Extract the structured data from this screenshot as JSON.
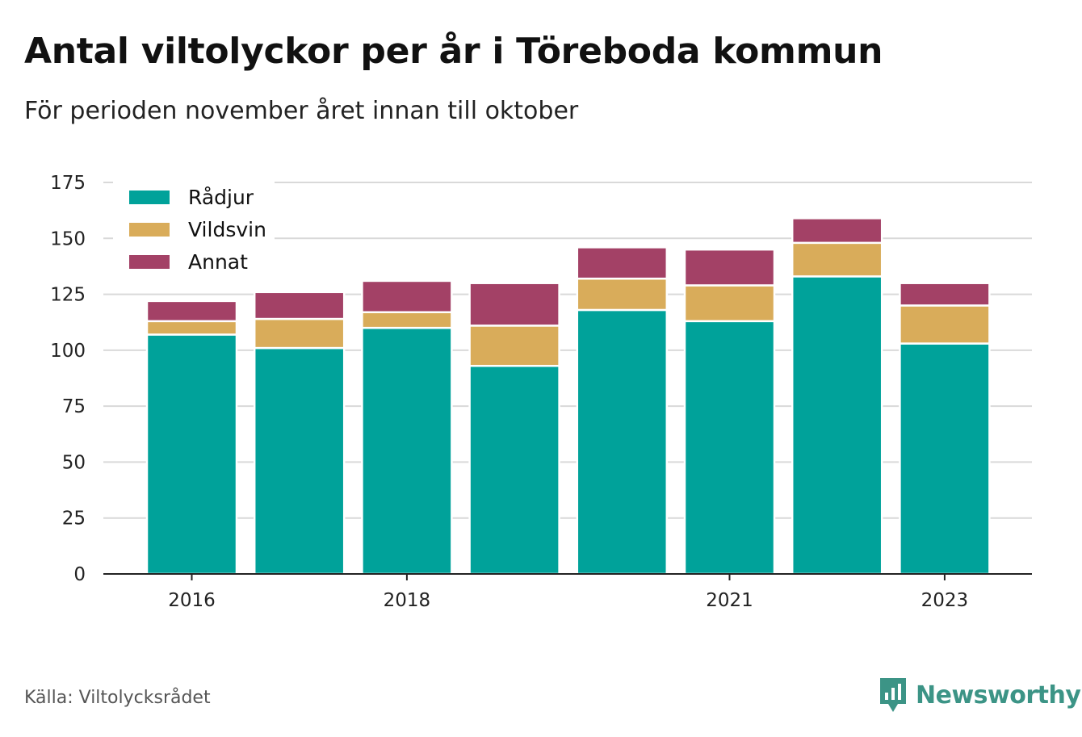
{
  "title": "Antal viltolyckor per år i Töreboda kommun",
  "subtitle": "För perioden november året innan till oktober",
  "source": "Källa: Viltolycksrådet",
  "logo_text": "Newsworthy",
  "colors": {
    "Rådjur": "#00a29a",
    "Vildsvin": "#d9ac5a",
    "Annat": "#a34166",
    "grid": "#d9d9d9",
    "axis": "#222222",
    "logo": "#3c9486"
  },
  "chart_data": {
    "type": "bar",
    "stacked": true,
    "categories": [
      "2016",
      "2017",
      "2018",
      "2019",
      "2020",
      "2021",
      "2022",
      "2023"
    ],
    "x_tick_labels": [
      "2016",
      "2018",
      "2021",
      "2023"
    ],
    "series": [
      {
        "name": "Rådjur",
        "values": [
          107,
          101,
          110,
          93,
          118,
          113,
          133,
          103
        ]
      },
      {
        "name": "Vildsvin",
        "values": [
          6,
          13,
          7,
          18,
          14,
          16,
          15,
          17
        ]
      },
      {
        "name": "Annat",
        "values": [
          9,
          12,
          14,
          19,
          14,
          16,
          11,
          10
        ]
      }
    ],
    "ylim": [
      0,
      175
    ],
    "y_ticks": [
      0,
      25,
      50,
      75,
      100,
      125,
      150,
      175
    ],
    "grid": true,
    "legend": "top-left",
    "xlabel": "",
    "ylabel": ""
  }
}
